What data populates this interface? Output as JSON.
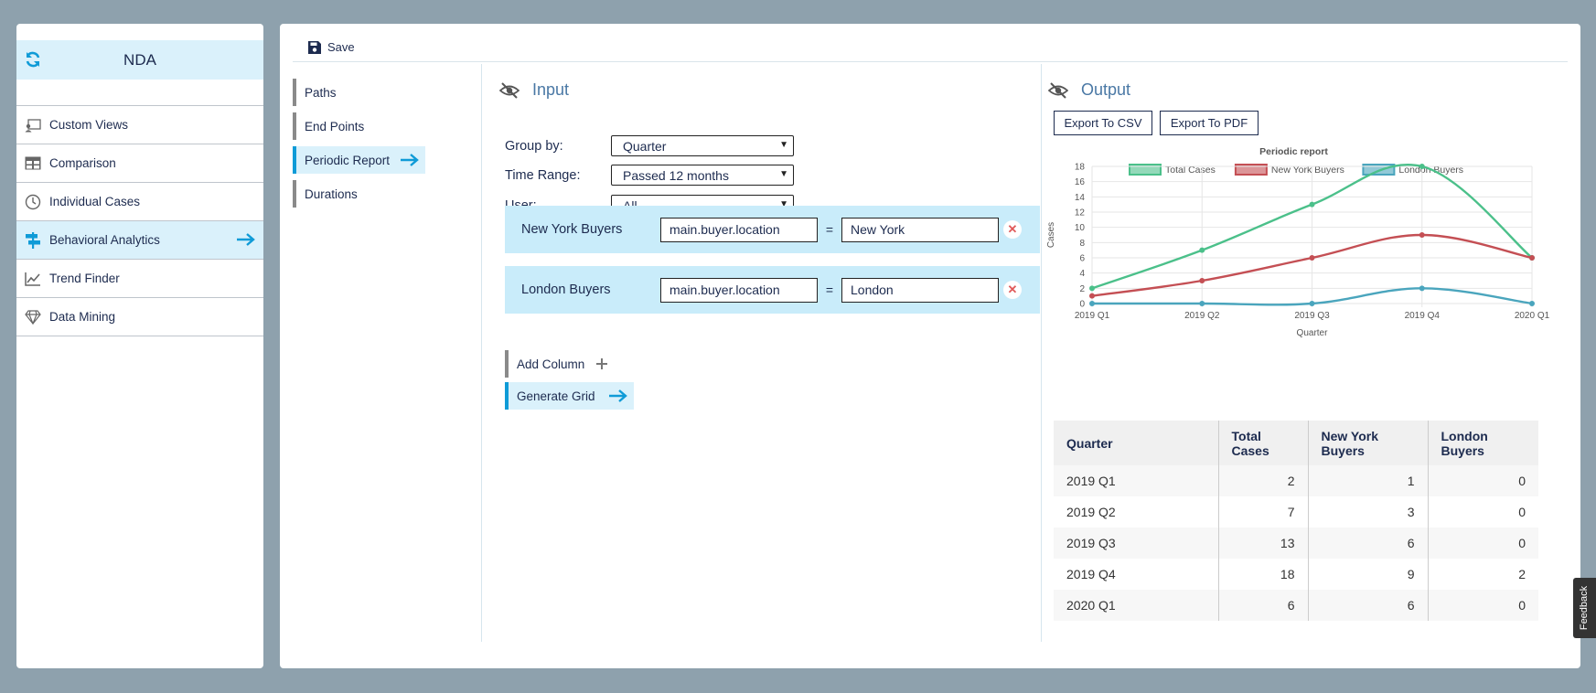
{
  "sidebar": {
    "title": "NDA",
    "items": [
      {
        "label": "Custom Views",
        "icon": "custom-views-icon",
        "active": false
      },
      {
        "label": "Comparison",
        "icon": "table-icon",
        "active": false
      },
      {
        "label": "Individual Cases",
        "icon": "clock-icon",
        "active": false
      },
      {
        "label": "Behavioral Analytics",
        "icon": "signpost-icon",
        "active": true
      },
      {
        "label": "Trend Finder",
        "icon": "line-chart-icon",
        "active": false
      },
      {
        "label": "Data Mining",
        "icon": "diamond-icon",
        "active": false
      }
    ]
  },
  "toolbar": {
    "save_label": "Save"
  },
  "subnav": {
    "items": [
      {
        "label": "Paths",
        "active": false
      },
      {
        "label": "End Points",
        "active": false
      },
      {
        "label": "Periodic Report",
        "active": true
      },
      {
        "label": "Durations",
        "active": false
      }
    ]
  },
  "input": {
    "title": "Input",
    "group_by": {
      "label": "Group by:",
      "value": "Quarter"
    },
    "time_range": {
      "label": "Time Range:",
      "value": "Passed 12 months"
    },
    "user": {
      "label": "User:",
      "value": "All"
    },
    "filters": [
      {
        "name": "New York Buyers",
        "field": "main.buyer.location",
        "operator": "=",
        "value": "New York"
      },
      {
        "name": "London Buyers",
        "field": "main.buyer.location",
        "operator": "=",
        "value": "London"
      }
    ],
    "add_column_label": "Add Column",
    "generate_grid_label": "Generate Grid"
  },
  "output": {
    "title": "Output",
    "export_csv_label": "Export To CSV",
    "export_pdf_label": "Export To PDF",
    "table": {
      "headers": [
        "Quarter",
        "Total Cases",
        "New York Buyers",
        "London Buyers"
      ],
      "rows": [
        [
          "2019 Q1",
          "2",
          "1",
          "0"
        ],
        [
          "2019 Q2",
          "7",
          "3",
          "0"
        ],
        [
          "2019 Q3",
          "13",
          "6",
          "0"
        ],
        [
          "2019 Q4",
          "18",
          "9",
          "2"
        ],
        [
          "2020 Q1",
          "6",
          "6",
          "0"
        ]
      ]
    }
  },
  "chart_data": {
    "type": "line",
    "title": "Periodic report",
    "xlabel": "Quarter",
    "ylabel": "Cases",
    "categories": [
      "2019 Q1",
      "2019 Q2",
      "2019 Q3",
      "2019 Q4",
      "2020 Q1"
    ],
    "ylim": [
      0,
      18
    ],
    "yticks": [
      0,
      2,
      4,
      6,
      8,
      10,
      12,
      14,
      16,
      18
    ],
    "grid": true,
    "legend_position": "top",
    "series": [
      {
        "name": "Total Cases",
        "values": [
          2,
          7,
          13,
          18,
          6
        ],
        "color": "#4bc08a"
      },
      {
        "name": "New York Buyers",
        "values": [
          1,
          3,
          6,
          9,
          6
        ],
        "color": "#c44f54"
      },
      {
        "name": "London Buyers",
        "values": [
          0,
          0,
          0,
          2,
          0
        ],
        "color": "#4aa5bd"
      }
    ]
  },
  "feedback_label": "Feedback",
  "colors": {
    "accent": "#0f9bd7",
    "active_bg": "#daf1fb",
    "filter_bg": "#c9ecfa",
    "heading": "#4a78a5"
  }
}
